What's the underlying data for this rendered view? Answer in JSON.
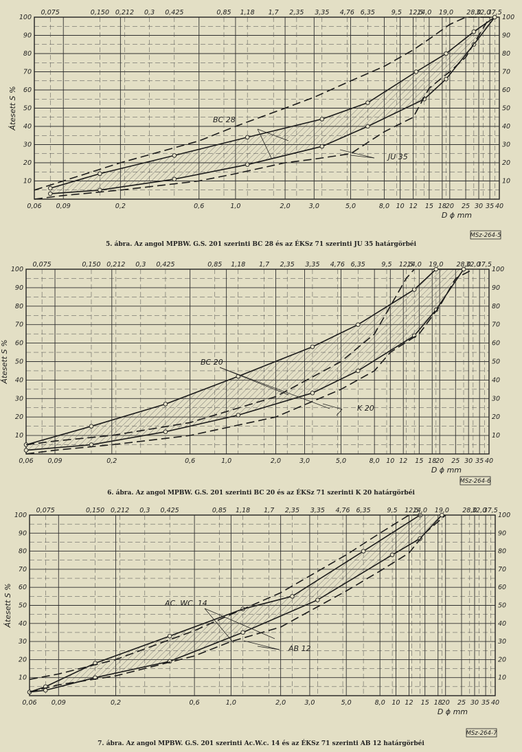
{
  "chart_data": [
    {
      "type": "line",
      "title": "",
      "caption": "5. ábra. Az angol MPBW. G.S. 201 szerinti BC 28 és az ÉKSz 71 szerinti JU 35 határgörbéi",
      "xlabel": "D ɸ mm",
      "ylabel": "Átesett S %",
      "x_scale": "log",
      "xlim": [
        0.06,
        40
      ],
      "ylim": [
        0,
        100
      ],
      "bottom_ticks": [
        "0,06",
        "0,09",
        "0,2",
        "0,6",
        "1,0",
        "2,0",
        "3,0",
        "5,0",
        "8,0",
        "10",
        "12",
        "15",
        "18",
        "20",
        "25",
        "30",
        "35",
        "40"
      ],
      "top_ticks": [
        "0,075",
        "0,150",
        "0,212",
        "0,3",
        "0,425",
        "0,85",
        "1,18",
        "1,7",
        "2,35",
        "3,35",
        "4,76",
        "6,35",
        "9,5",
        "12,5",
        "14,0",
        "19,0",
        "28,0",
        "32,0",
        "37,5"
      ],
      "left_ticks": [
        "100",
        "90",
        "80",
        "70",
        "60",
        "50",
        "40",
        "30",
        "20",
        "10"
      ],
      "right_ticks": [
        "100",
        "90",
        "80",
        "70",
        "60",
        "50",
        "40",
        "30",
        "20",
        "10"
      ],
      "callouts": [
        "BC 28",
        "JU 35"
      ],
      "stamp": "MSz-264-5",
      "series": [
        {
          "name": "BC 28",
          "style": "solid",
          "x": [
            0.075,
            0.15,
            0.425,
            1.18,
            3.35,
            6.35,
            12.5,
            19.0,
            28.0,
            37.5
          ],
          "y": [
            6,
            14,
            24,
            34,
            44,
            53,
            70,
            80,
            92,
            100
          ]
        },
        {
          "name": "BC 28",
          "style": "solid",
          "x": [
            0.075,
            0.15,
            0.425,
            1.18,
            3.35,
            6.35,
            14.0,
            19.0,
            28.0,
            37.5
          ],
          "y": [
            3,
            5,
            11,
            19,
            29,
            40,
            55,
            66,
            85,
            100
          ]
        },
        {
          "name": "JU 35",
          "style": "dash",
          "x": [
            0.06,
            0.09,
            0.2,
            0.6,
            1.0,
            2.0,
            3.0,
            5.0,
            8.0,
            12.0,
            15.0,
            20.0,
            25.0,
            35.0
          ],
          "y": [
            5,
            10,
            20,
            32,
            40,
            50,
            56,
            65,
            73,
            82,
            88,
            96,
            100,
            100
          ]
        },
        {
          "name": "JU 35",
          "style": "dash",
          "x": [
            0.06,
            0.09,
            0.2,
            0.6,
            1.0,
            2.0,
            3.0,
            5.0,
            8.0,
            12.0,
            15.0,
            20.0,
            25.0,
            35.0
          ],
          "y": [
            0,
            2,
            5,
            10,
            14,
            20,
            22,
            25,
            37,
            45,
            61,
            70,
            78,
            100
          ]
        }
      ]
    },
    {
      "type": "line",
      "title": "",
      "caption": "6. ábra. Az angol MPBW. G.S. 201 szerinti BC 20 és az ÉKSz 71 szerinti K 20 határgörbéi",
      "xlabel": "D ɸ mm",
      "ylabel": "Átesett S %",
      "x_scale": "log",
      "xlim": [
        0.06,
        40
      ],
      "ylim": [
        0,
        100
      ],
      "bottom_ticks": [
        "0,06",
        "0,09",
        "0,2",
        "0,6",
        "1,0",
        "2,0",
        "3,0",
        "5,0",
        "8,0",
        "10",
        "12",
        "15",
        "18",
        "20",
        "25",
        "30",
        "35",
        "40"
      ],
      "top_ticks": [
        "0,075",
        "0,150",
        "0,212",
        "0,3",
        "0,425",
        "0,85",
        "1,18",
        "1,7",
        "2,35",
        "3,35",
        "4,76",
        "6,35",
        "9,5",
        "12,5",
        "14,0",
        "19,0",
        "28,0",
        "32,0",
        "37,5"
      ],
      "left_ticks": [
        "100",
        "90",
        "80",
        "70",
        "60",
        "50",
        "40",
        "30",
        "20",
        "10"
      ],
      "right_ticks": [
        "100",
        "90",
        "80",
        "70",
        "60",
        "50",
        "40",
        "30",
        "20",
        "10"
      ],
      "callouts": [
        "BC 20",
        "K 20"
      ],
      "stamp": "MSz-264-6",
      "series": [
        {
          "name": "BC 20",
          "style": "solid",
          "x": [
            0.06,
            0.15,
            0.425,
            1.18,
            3.35,
            6.35,
            14.0,
            19.0,
            28.0
          ],
          "y": [
            5,
            15,
            27,
            42,
            58,
            70,
            89,
            100,
            100
          ]
        },
        {
          "name": "BC 20",
          "style": "solid",
          "x": [
            0.06,
            0.15,
            0.425,
            1.18,
            3.35,
            6.35,
            14.0,
            19.0,
            28.0
          ],
          "y": [
            2,
            5,
            12,
            21,
            33,
            45,
            64,
            78,
            100
          ]
        },
        {
          "name": "K 20",
          "style": "dash",
          "x": [
            0.06,
            0.09,
            0.2,
            0.6,
            2.0,
            5.0,
            8.0,
            10.0,
            12.5,
            14.0
          ],
          "y": [
            5,
            7,
            10,
            17,
            31,
            50,
            65,
            80,
            95,
            100
          ]
        },
        {
          "name": "K 20",
          "style": "dash",
          "x": [
            0.06,
            0.09,
            0.2,
            0.6,
            2.0,
            5.0,
            8.0,
            10.0,
            15.0,
            20.0,
            25.0,
            32.0
          ],
          "y": [
            0,
            2,
            5,
            10,
            20,
            35,
            45,
            55,
            65,
            80,
            95,
            100
          ]
        }
      ]
    },
    {
      "type": "line",
      "title": "",
      "caption": "7. ábra. Az angol MPBW. G.S. 201 szerinti Ac.W.c. 14 és az ÉKSz 71 szerinti AB 12 határgörbéi",
      "xlabel": "D ɸ mm",
      "ylabel": "Átesett S %",
      "x_scale": "log",
      "xlim": [
        0.06,
        40
      ],
      "ylim": [
        0,
        100
      ],
      "bottom_ticks": [
        "0,06",
        "0,09",
        "0,2",
        "0,6",
        "1,0",
        "2,0",
        "3,0",
        "5,0",
        "8,0",
        "10",
        "12",
        "15",
        "18",
        "20",
        "25",
        "30",
        "35",
        "40"
      ],
      "top_ticks": [
        "0,075",
        "0,150",
        "0,212",
        "0,3",
        "0,425",
        "0,85",
        "1,18",
        "1,7",
        "2,35",
        "3,35",
        "4,76",
        "6,35",
        "9,5",
        "12,5",
        "14,0",
        "19,0",
        "28,0",
        "32,0",
        "37,5"
      ],
      "left_ticks": [
        "100",
        "90",
        "80",
        "70",
        "60",
        "50",
        "40",
        "30",
        "20",
        "10"
      ],
      "right_ticks": [
        "100",
        "90",
        "80",
        "70",
        "60",
        "50",
        "40",
        "30",
        "20",
        "10"
      ],
      "callouts": [
        "AC. WC. 14",
        "AB 12"
      ],
      "stamp": "MSz-264-7",
      "series": [
        {
          "name": "AC. WC. 14",
          "style": "solid",
          "x": [
            0.06,
            0.075,
            0.15,
            0.425,
            1.18,
            2.35,
            6.35,
            14.0
          ],
          "y": [
            2,
            5,
            18,
            33,
            48,
            55,
            80,
            100
          ]
        },
        {
          "name": "AC. WC. 14",
          "style": "solid",
          "x": [
            0.06,
            0.075,
            0.15,
            0.425,
            1.18,
            3.35,
            9.5,
            14.0,
            19.0
          ],
          "y": [
            2,
            3,
            10,
            19,
            35,
            53,
            78,
            87,
            100
          ]
        },
        {
          "name": "AB 12",
          "style": "dash",
          "x": [
            0.06,
            0.09,
            0.2,
            0.6,
            1.0,
            2.0,
            5.0,
            8.0,
            12.0,
            15.0
          ],
          "y": [
            9,
            12,
            20,
            36,
            45,
            57,
            78,
            90,
            100,
            100
          ]
        },
        {
          "name": "AB 12",
          "style": "dash",
          "x": [
            0.06,
            0.09,
            0.2,
            0.6,
            1.0,
            2.0,
            5.0,
            8.0,
            12.0,
            15.0,
            20.0
          ],
          "y": [
            2,
            6,
            11,
            22,
            30,
            38,
            58,
            69,
            79,
            90,
            100
          ]
        }
      ]
    }
  ]
}
